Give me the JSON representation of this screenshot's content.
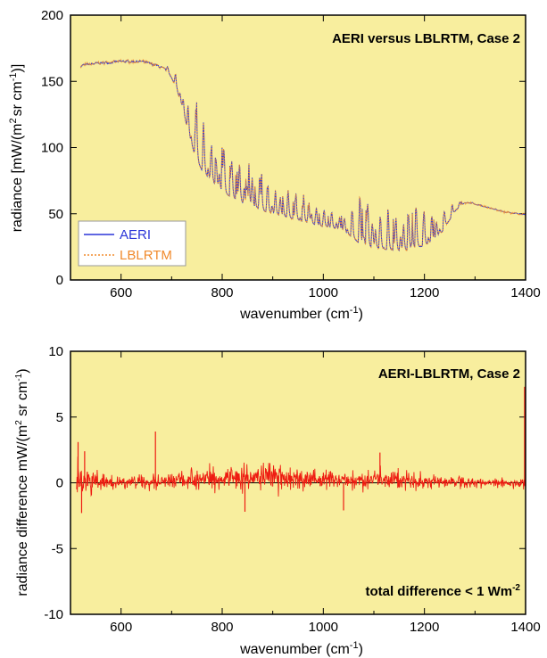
{
  "chart_data": [
    {
      "type": "line",
      "annotation": "AERI versus LBLRTM, Case 2",
      "xlabel_main": "wavenumber (cm",
      "xlabel_sup": "-1",
      "xlabel_end": ")",
      "ylabel_part1": "radiance [mW/(m",
      "ylabel_sup1": "2",
      "ylabel_part2": "sr cm",
      "ylabel_sup2": "-1",
      "ylabel_part3": ")]",
      "xlim": [
        500,
        1400
      ],
      "ylim": [
        0,
        200
      ],
      "xticks": [
        600,
        800,
        1000,
        1200,
        1400
      ],
      "yticks": [
        0,
        50,
        100,
        150,
        200
      ],
      "background": "#f8ee9e",
      "grid": false,
      "legend_placement": "bottom-left",
      "series": [
        {
          "name": "AERI",
          "color": "#2b35d8",
          "style": "solid",
          "x": [
            520,
            560,
            600,
            640,
            670,
            690,
            700,
            710,
            720,
            730,
            740,
            750,
            760,
            770,
            780,
            790,
            800,
            810,
            820,
            830,
            840,
            850,
            860,
            870,
            880,
            890,
            900,
            910,
            920,
            930,
            940,
            950,
            960,
            970,
            980,
            990,
            1000,
            1010,
            1020,
            1030,
            1040,
            1050,
            1060,
            1070,
            1080,
            1090,
            1100,
            1110,
            1120,
            1130,
            1140,
            1150,
            1160,
            1170,
            1180,
            1190,
            1200,
            1210,
            1220,
            1230,
            1240,
            1250,
            1260,
            1270,
            1280,
            1290,
            1300,
            1320,
            1340,
            1360,
            1380,
            1400
          ],
          "base": [
            162,
            164,
            165,
            165,
            162,
            158,
            152,
            143,
            130,
            115,
            100,
            90,
            82,
            78,
            74,
            70,
            67,
            64,
            62,
            60,
            58,
            56,
            55,
            54,
            52,
            51,
            50,
            49,
            48,
            47,
            46,
            45,
            44,
            43,
            42,
            41,
            40,
            40,
            39,
            38,
            36,
            34,
            31,
            28,
            26,
            25,
            24,
            24,
            23,
            23,
            22,
            22,
            22,
            23,
            24,
            25,
            26,
            28,
            30,
            34,
            40,
            46,
            52,
            56,
            58,
            58,
            57,
            55,
            53,
            51,
            50,
            49
          ],
          "peak": [
            165,
            166,
            167,
            166,
            165,
            163,
            160,
            158,
            155,
            152,
            150,
            148,
            140,
            135,
            130,
            122,
            118,
            112,
            108,
            104,
            100,
            98,
            96,
            94,
            92,
            90,
            88,
            85,
            82,
            78,
            76,
            74,
            72,
            70,
            68,
            66,
            64,
            62,
            60,
            60,
            62,
            64,
            72,
            78,
            80,
            80,
            78,
            76,
            74,
            72,
            70,
            70,
            72,
            74,
            76,
            78,
            75,
            70,
            66,
            62,
            60,
            60,
            62,
            62,
            60,
            60,
            58,
            56,
            54,
            52,
            51,
            50
          ]
        },
        {
          "name": "LBLRTM",
          "color": "#f08a2c",
          "style": "dotted"
        }
      ]
    },
    {
      "type": "line",
      "annotation": "AERI-LBLRTM, Case 2",
      "note_text": "total difference < 1 Wm",
      "note_sup": "-2",
      "xlabel_main": "wavenumber (cm",
      "xlabel_sup": "-1",
      "xlabel_end": ")",
      "ylabel_part1": "radiance difference mW/(m",
      "ylabel_sup1": "2",
      "ylabel_part2": " sr cm",
      "ylabel_sup2": "-1",
      "ylabel_part3": ")",
      "xlim": [
        500,
        1400
      ],
      "ylim": [
        -10,
        10
      ],
      "xticks": [
        600,
        800,
        1000,
        1200,
        1400
      ],
      "yticks": [
        -10,
        -5,
        0,
        5,
        10
      ],
      "background": "#f8ee9e",
      "grid": false,
      "series": [
        {
          "name": "difference",
          "color": "#ee1c12",
          "x": [
            520,
            540,
            560,
            580,
            600,
            620,
            640,
            660,
            680,
            700,
            720,
            740,
            760,
            780,
            800,
            820,
            840,
            860,
            880,
            900,
            920,
            940,
            960,
            980,
            1000,
            1020,
            1040,
            1060,
            1080,
            1100,
            1120,
            1140,
            1160,
            1180,
            1200,
            1220,
            1240,
            1260,
            1280,
            1300,
            1320,
            1340,
            1360,
            1380,
            1400
          ],
          "amplitude": [
            2.2,
            1.4,
            1.0,
            0.8,
            0.7,
            0.7,
            0.7,
            0.8,
            0.7,
            0.8,
            0.9,
            1.0,
            1.1,
            1.1,
            1.0,
            1.1,
            1.2,
            1.2,
            1.3,
            1.3,
            1.2,
            1.2,
            1.0,
            0.9,
            0.9,
            1.0,
            1.1,
            1.1,
            1.1,
            1.2,
            1.2,
            1.1,
            1.0,
            0.9,
            0.9,
            0.8,
            0.7,
            0.6,
            0.6,
            0.5,
            0.5,
            0.5,
            0.5,
            0.6,
            0.8
          ],
          "offset": [
            0.2,
            0.1,
            0.0,
            0.0,
            0.0,
            0.1,
            0.1,
            0.1,
            0.2,
            0.2,
            0.3,
            0.4,
            0.5,
            0.5,
            0.5,
            0.5,
            0.6,
            0.6,
            0.7,
            0.7,
            0.6,
            0.5,
            0.4,
            0.3,
            0.3,
            0.3,
            0.3,
            0.3,
            0.4,
            0.4,
            0.4,
            0.3,
            0.3,
            0.2,
            0.2,
            0.2,
            0.1,
            0.1,
            0.1,
            0.0,
            0.0,
            0.0,
            0.0,
            0.0,
            0.0
          ],
          "spikes": [
            {
              "x": 515,
              "y": 3.1
            },
            {
              "x": 522,
              "y": -2.3
            },
            {
              "x": 528,
              "y": 2.4
            },
            {
              "x": 668,
              "y": 3.9
            },
            {
              "x": 845,
              "y": -2.2
            },
            {
              "x": 1112,
              "y": 2.3
            },
            {
              "x": 1040,
              "y": -2.1
            },
            {
              "x": 1398,
              "y": 7.3
            }
          ]
        }
      ]
    }
  ]
}
